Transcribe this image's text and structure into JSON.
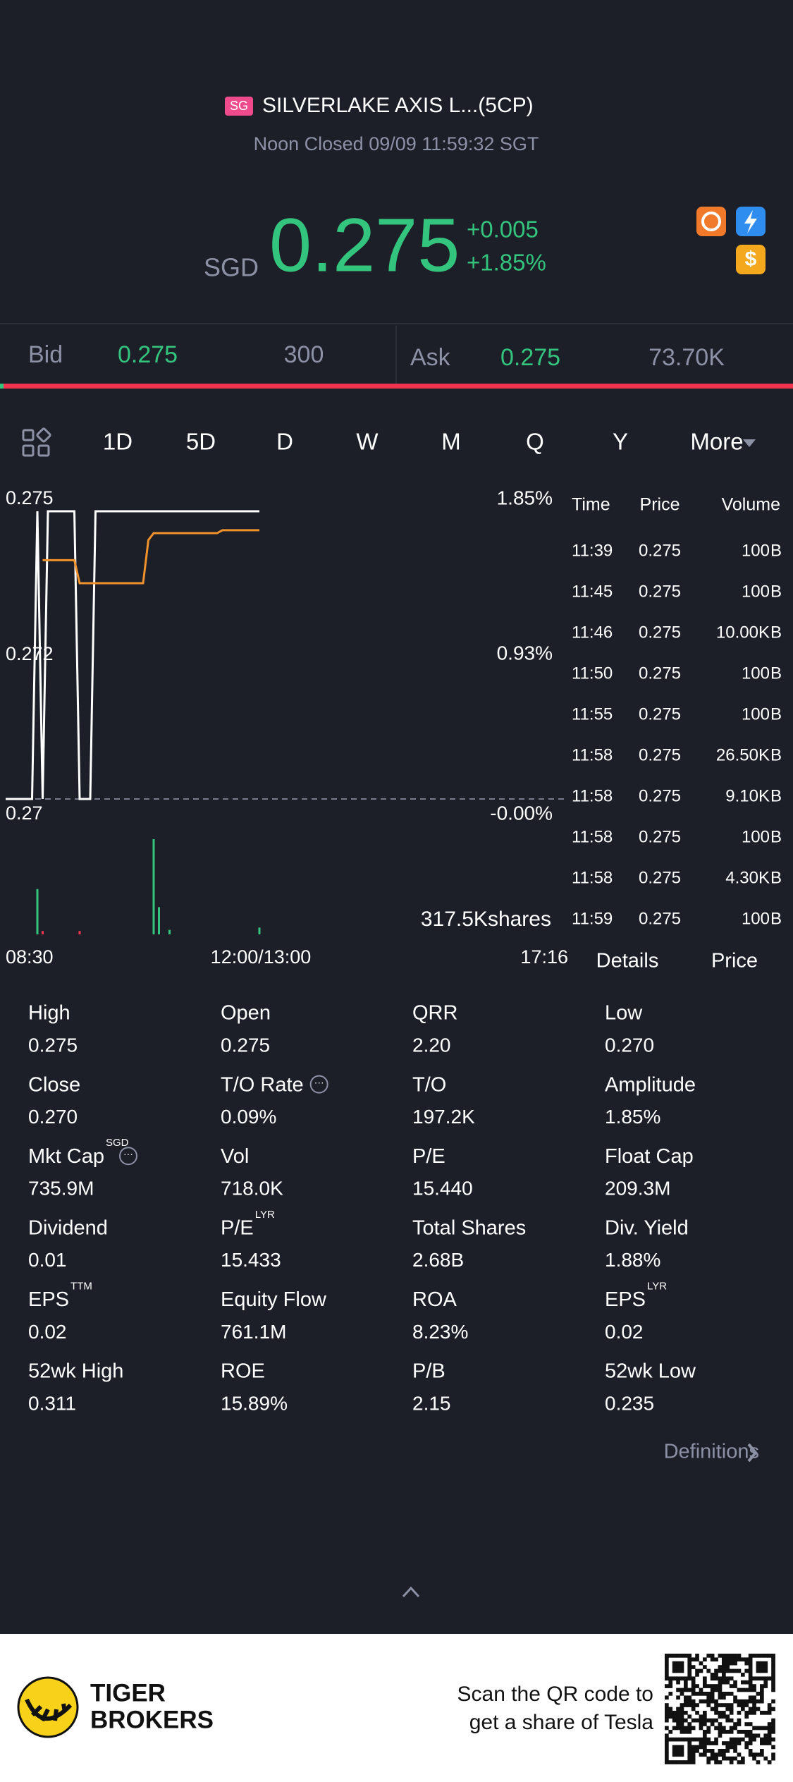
{
  "header": {
    "market": "SG",
    "title": "SILVERLAKE AXIS L...(5CP)",
    "status": "Noon Closed 09/09 11:59:32 SGT",
    "currency": "SGD",
    "price": "0.275",
    "change": "+0.005",
    "change_pct": "+1.85%"
  },
  "quote": {
    "bid_label": "Bid",
    "bid_price": "0.275",
    "bid_size": "300",
    "ask_label": "Ask",
    "ask_price": "0.275",
    "ask_size": "73.70K"
  },
  "tabs": [
    "1D",
    "5D",
    "D",
    "W",
    "M",
    "Q",
    "Y",
    "More"
  ],
  "active_tab": 0,
  "chart_data": {
    "type": "line",
    "ylim": [
      0.27,
      0.275
    ],
    "yticks": [
      0.275,
      {
        "value": 0.2725,
        "label": "0.272"
      },
      0.27
    ],
    "y2lim": [
      0,
      1.85
    ],
    "y2ticks": [
      {
        "value": 1.85,
        "label": "1.85%"
      },
      {
        "value": 0.93,
        "label": "0.93%"
      },
      {
        "value": 0,
        "label": "-0.00%"
      }
    ],
    "xtick_labels": [
      "08:30",
      "12:00/13:00",
      "17:16"
    ],
    "series": [
      {
        "name": "Price",
        "color": "#ffffff",
        "values": [
          0.27,
          0.27,
          0.27,
          0.27,
          0.27,
          0.27,
          0.275,
          0.27,
          0.275,
          0.275,
          0.275,
          0.275,
          0.275,
          0.275,
          0.27,
          0.27,
          0.27,
          0.275,
          0.275,
          0.275,
          0.275,
          0.275,
          0.275,
          0.275,
          0.275,
          0.275,
          0.275,
          0.275,
          0.275,
          0.275,
          0.275,
          0.275,
          0.275,
          0.275,
          0.275,
          0.275,
          0.275,
          0.275,
          0.275,
          0.275,
          0.275,
          0.275,
          0.275,
          0.275,
          0.275,
          0.275,
          0.275,
          0.275,
          0.275
        ]
      },
      {
        "name": "Average",
        "color": "#f0922b",
        "values": [
          null,
          null,
          null,
          null,
          null,
          null,
          null,
          0.27415,
          0.27415,
          0.27415,
          0.27415,
          0.27415,
          0.27415,
          0.27415,
          0.27375,
          0.27375,
          0.27375,
          0.27375,
          0.27375,
          0.27375,
          0.27375,
          0.27375,
          0.27375,
          0.27375,
          0.27375,
          0.27375,
          0.27375,
          0.2745,
          0.27462,
          0.27462,
          0.27462,
          0.27462,
          0.27462,
          0.27462,
          0.27462,
          0.27462,
          0.27462,
          0.27462,
          0.27462,
          0.27462,
          0.27462,
          0.27467,
          0.27467,
          0.27467,
          0.27467,
          0.27467,
          0.27467,
          0.27467,
          0.27467
        ]
      }
    ],
    "volume": [
      0,
      0,
      0,
      0,
      0,
      0,
      20,
      1.5,
      0,
      0,
      0,
      0,
      0,
      0,
      1.5,
      0,
      0,
      0,
      0,
      0,
      0,
      0,
      0,
      0,
      0,
      0,
      0,
      0,
      42,
      12,
      0,
      2,
      0,
      0,
      0,
      0,
      0,
      0,
      0,
      0,
      0,
      0,
      0,
      0,
      0,
      0,
      0,
      0,
      3
    ],
    "volume_label": "317.5Kshares"
  },
  "trades": {
    "columns": [
      "Time",
      "Price",
      "Volume"
    ],
    "rows": [
      [
        "11:39",
        "0.275",
        "100",
        "B"
      ],
      [
        "11:45",
        "0.275",
        "100",
        "B"
      ],
      [
        "11:46",
        "0.275",
        "10.00K",
        "B"
      ],
      [
        "11:50",
        "0.275",
        "100",
        "B"
      ],
      [
        "11:55",
        "0.275",
        "100",
        "B"
      ],
      [
        "11:58",
        "0.275",
        "26.50K",
        "B"
      ],
      [
        "11:58",
        "0.275",
        "9.10K",
        "B"
      ],
      [
        "11:58",
        "0.275",
        "100",
        "B"
      ],
      [
        "11:58",
        "0.275",
        "4.30K",
        "B"
      ],
      [
        "11:59",
        "0.275",
        "100",
        "B"
      ]
    ]
  },
  "side_tabs": [
    "Details",
    "Price"
  ],
  "details": [
    {
      "label": "High",
      "value": "0.275"
    },
    {
      "label": "Open",
      "value": "0.275"
    },
    {
      "label": "QRR",
      "value": "2.20"
    },
    {
      "label": "Low",
      "value": "0.270"
    },
    {
      "label": "Close",
      "value": "0.270"
    },
    {
      "label": "T/O Rate",
      "value": "0.09%",
      "info": true
    },
    {
      "label": "T/O",
      "value": "197.2K"
    },
    {
      "label": "Amplitude",
      "value": "1.85%"
    },
    {
      "label": "Mkt Cap",
      "sup": "SGD",
      "value": "735.9M",
      "info": true
    },
    {
      "label": "Vol",
      "value": "718.0K"
    },
    {
      "label": "P/E",
      "value": "15.440"
    },
    {
      "label": "Float Cap",
      "value": "209.3M"
    },
    {
      "label": "Dividend",
      "value": "0.01"
    },
    {
      "label": "P/E",
      "sup": "LYR",
      "value": "15.433"
    },
    {
      "label": "Total Shares",
      "value": "2.68B"
    },
    {
      "label": "Div. Yield",
      "value": "1.88%"
    },
    {
      "label": "EPS",
      "sup": "TTM",
      "value": "0.02"
    },
    {
      "label": "Equity Flow",
      "value": "761.1M"
    },
    {
      "label": "ROA",
      "value": "8.23%"
    },
    {
      "label": "EPS",
      "sup": "LYR",
      "value": "0.02"
    },
    {
      "label": "52wk High",
      "value": "0.311"
    },
    {
      "label": "ROE",
      "value": "15.89%"
    },
    {
      "label": "P/B",
      "value": "2.15"
    },
    {
      "label": "52wk Low",
      "value": "0.235"
    }
  ],
  "definitions": "Definitions",
  "footer": {
    "brand": [
      "TIGER",
      "BROKERS"
    ],
    "promo": [
      "Scan the QR code to",
      "get a share of Tesla"
    ]
  }
}
